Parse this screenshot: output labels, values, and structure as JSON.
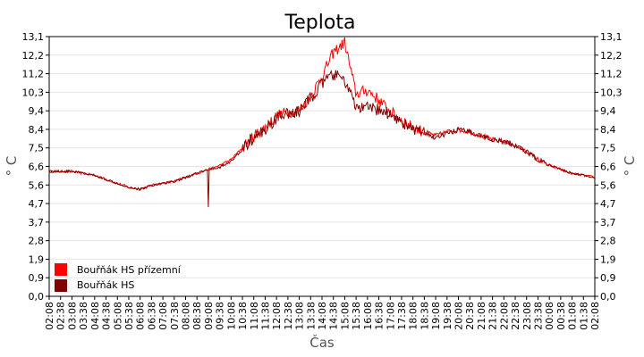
{
  "chart_data": {
    "type": "line",
    "title": "Teplota",
    "xlabel": "Čas",
    "ylabel": "° C",
    "ylim": [
      0,
      13.1
    ],
    "y_ticks": [
      "0,0",
      "0,9",
      "1,9",
      "2,8",
      "3,7",
      "4,7",
      "5,6",
      "6,6",
      "7,5",
      "8,4",
      "9,4",
      "10,3",
      "11,2",
      "12,2",
      "13,1"
    ],
    "x_ticks": [
      "02:08",
      "02:38",
      "03:08",
      "03:38",
      "04:08",
      "04:38",
      "05:08",
      "05:38",
      "06:08",
      "06:38",
      "07:08",
      "07:38",
      "08:08",
      "08:38",
      "09:08",
      "09:38",
      "10:08",
      "10:38",
      "11:08",
      "11:38",
      "12:08",
      "12:38",
      "13:08",
      "13:38",
      "14:08",
      "14:38",
      "15:08",
      "15:38",
      "16:08",
      "16:38",
      "17:08",
      "17:38",
      "18:08",
      "18:38",
      "19:08",
      "19:38",
      "20:08",
      "20:38",
      "21:08",
      "21:38",
      "22:08",
      "22:38",
      "23:08",
      "23:38",
      "00:08",
      "00:38",
      "01:08",
      "01:38",
      "02:08"
    ],
    "grid": true,
    "legend_position": "bottom-left",
    "series": [
      {
        "name": "Bouřňák HS přízemní",
        "color": "#ff0000",
        "x": [
          0.0,
          0.5,
          1.0,
          1.5,
          2.0,
          2.5,
          3.0,
          3.5,
          4.0,
          4.5,
          5.0,
          5.5,
          6.0,
          6.5,
          7.0,
          7.5,
          8.0,
          8.5,
          9.0,
          9.5,
          10.0,
          10.5,
          11.0,
          11.5,
          12.0,
          12.5,
          13.0,
          13.5,
          14.0,
          14.5,
          15.0,
          15.5,
          16.0,
          16.5,
          17.0,
          17.5,
          18.0,
          18.5,
          19.0,
          19.5,
          20.0,
          20.5,
          21.0,
          21.5,
          22.0,
          22.5,
          23.0,
          23.5,
          24.0
        ],
        "values": [
          6.3,
          6.3,
          6.3,
          6.2,
          6.1,
          5.9,
          5.7,
          5.5,
          5.4,
          5.6,
          5.7,
          5.8,
          6.0,
          6.2,
          6.4,
          6.6,
          6.9,
          7.5,
          8.1,
          8.5,
          9.1,
          9.3,
          9.4,
          10.1,
          11.1,
          12.3,
          12.8,
          10.2,
          10.4,
          9.9,
          9.3,
          8.9,
          8.5,
          8.3,
          8.1,
          8.3,
          8.4,
          8.3,
          8.1,
          7.9,
          7.8,
          7.6,
          7.3,
          6.9,
          6.6,
          6.4,
          6.2,
          6.1,
          6.0
        ]
      },
      {
        "name": "Bouřňák HS",
        "color": "#800000",
        "x": [
          0.0,
          0.5,
          1.0,
          1.5,
          2.0,
          2.5,
          3.0,
          3.5,
          4.0,
          4.5,
          5.0,
          5.5,
          6.0,
          6.5,
          7.0,
          7.5,
          8.0,
          8.5,
          9.0,
          9.5,
          10.0,
          10.5,
          11.0,
          11.5,
          12.0,
          12.5,
          13.0,
          13.5,
          14.0,
          14.5,
          15.0,
          15.5,
          16.0,
          16.5,
          17.0,
          17.5,
          18.0,
          18.5,
          19.0,
          19.5,
          20.0,
          20.5,
          21.0,
          21.5,
          22.0,
          22.5,
          23.0,
          23.5,
          24.0
        ],
        "values": [
          6.3,
          6.3,
          6.3,
          6.2,
          6.1,
          5.9,
          5.7,
          5.5,
          5.4,
          5.6,
          5.7,
          5.8,
          6.0,
          6.2,
          6.4,
          6.5,
          6.8,
          7.4,
          8.0,
          8.4,
          9.0,
          9.2,
          9.3,
          10.0,
          10.7,
          11.2,
          10.9,
          9.5,
          9.5,
          9.4,
          9.2,
          8.8,
          8.4,
          8.2,
          8.0,
          8.2,
          8.4,
          8.3,
          8.1,
          7.9,
          7.8,
          7.6,
          7.3,
          6.9,
          6.6,
          6.4,
          6.2,
          6.1,
          6.0
        ]
      }
    ]
  }
}
